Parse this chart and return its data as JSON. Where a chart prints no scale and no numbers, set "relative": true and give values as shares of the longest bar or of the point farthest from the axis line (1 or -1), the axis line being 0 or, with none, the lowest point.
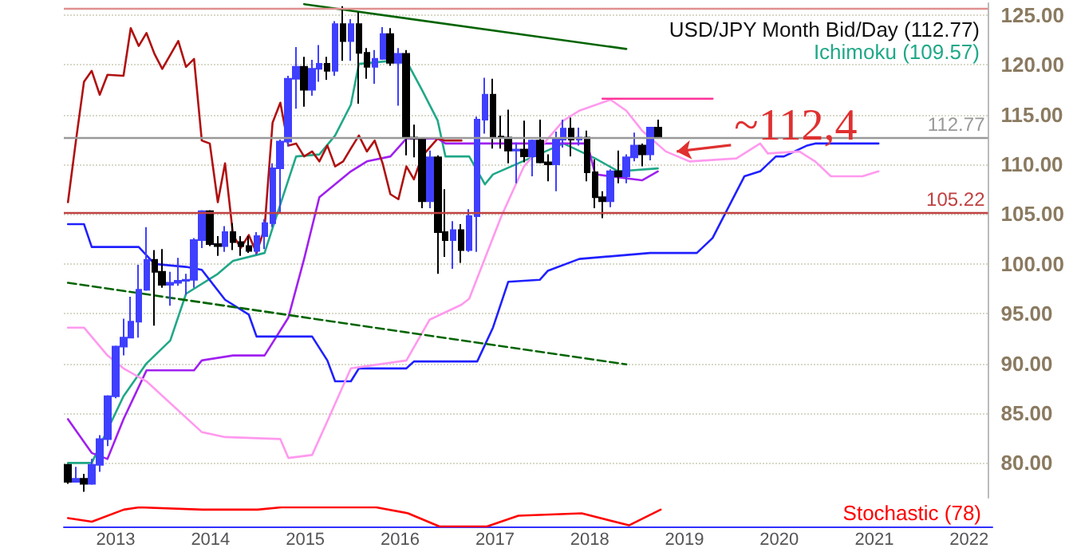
{
  "chart_data": [
    {
      "type": "candlestick",
      "xlim": [
        "2012-06-15",
        "2022-04"
      ],
      "ylim": [
        76.5,
        126.2
      ],
      "tick_labels": "y",
      "grid": "y",
      "legend": "top right",
      "marker": "none",
      "yticks": [
        {
          "value": 80,
          "label": "80.00"
        },
        {
          "value": 85,
          "label": "85.00"
        },
        {
          "value": 90,
          "label": "90.00"
        },
        {
          "value": 95,
          "label": "95.00"
        },
        {
          "value": 100,
          "label": "100.00"
        },
        {
          "value": 105,
          "label": "105.00"
        },
        {
          "value": 110,
          "label": "110.00"
        },
        {
          "value": 115,
          "label": "115.00"
        },
        {
          "value": 120,
          "label": "120.00"
        },
        {
          "value": 125,
          "label": "125.00"
        }
      ],
      "ref_lines": [
        {
          "axis": "y",
          "value": 125.6,
          "color": "#e09090"
        },
        {
          "axis": "y",
          "value": 112.77,
          "label": "112.77",
          "color": "#999999"
        },
        {
          "axis": "y",
          "value": 105.22,
          "label": "105.22",
          "color": "#c04040"
        }
      ],
      "annotations": [
        {
          "text": "~112,4",
          "x": "2018-12",
          "y": 111.3
        }
      ],
      "series": [
        {
          "type": "candlestick",
          "name": "USD/JPY Month Bid/Day (112.77)",
          "x": [
            "2012-07",
            "2012-08",
            "2012-09",
            "2012-10",
            "2012-11",
            "2012-12",
            "2013-01",
            "2013-02",
            "2013-03",
            "2013-04",
            "2013-05",
            "2013-06",
            "2013-07",
            "2013-08",
            "2013-09",
            "2013-10",
            "2013-11",
            "2013-12",
            "2014-01",
            "2014-02",
            "2014-03",
            "2014-04",
            "2014-05",
            "2014-06",
            "2014-07",
            "2014-08",
            "2014-09",
            "2014-10",
            "2014-11",
            "2014-12",
            "2015-01",
            "2015-02",
            "2015-03",
            "2015-04",
            "2015-05",
            "2015-06",
            "2015-07",
            "2015-08",
            "2015-09",
            "2015-10",
            "2015-11",
            "2015-12",
            "2016-01",
            "2016-02",
            "2016-03",
            "2016-04",
            "2016-05",
            "2016-06",
            "2016-07",
            "2016-08",
            "2016-09",
            "2016-10",
            "2016-11",
            "2016-12",
            "2017-01",
            "2017-02",
            "2017-03",
            "2017-04",
            "2017-05",
            "2017-06",
            "2017-07",
            "2017-08",
            "2017-09",
            "2017-10",
            "2017-11",
            "2017-12",
            "2018-01",
            "2018-02",
            "2018-03",
            "2018-04",
            "2018-05",
            "2018-06",
            "2018-07",
            "2018-08",
            "2018-09",
            "2018-10"
          ],
          "ohlc": [
            [
              79.8,
              79.9,
              77.9,
              78.1
            ],
            [
              78.1,
              79.6,
              78.1,
              78.4
            ],
            [
              78.4,
              78.9,
              77.1,
              77.9
            ],
            [
              77.9,
              80.4,
              77.8,
              79.8
            ],
            [
              79.8,
              82.8,
              79.1,
              82.4
            ],
            [
              82.4,
              86.8,
              81.7,
              86.7
            ],
            [
              86.7,
              91.8,
              86.5,
              91.7
            ],
            [
              91.7,
              94.5,
              90.8,
              92.6
            ],
            [
              92.6,
              96.7,
              92.6,
              94.2
            ],
            [
              94.2,
              99.9,
              92.6,
              97.4
            ],
            [
              97.4,
              103.7,
              97.3,
              100.4
            ],
            [
              100.4,
              101.4,
              93.8,
              99.2
            ],
            [
              99.2,
              101.5,
              97.6,
              97.9
            ],
            [
              97.9,
              99.2,
              95.8,
              98.1
            ],
            [
              98.1,
              100.6,
              97.8,
              98.3
            ],
            [
              98.3,
              99.0,
              96.9,
              98.4
            ],
            [
              98.4,
              102.6,
              97.6,
              102.4
            ],
            [
              102.4,
              105.4,
              101.6,
              105.3
            ],
            [
              105.3,
              105.4,
              101.8,
              102.0
            ],
            [
              102.0,
              102.8,
              100.8,
              101.8
            ],
            [
              101.8,
              103.8,
              101.2,
              103.2
            ],
            [
              103.2,
              104.1,
              101.4,
              102.2
            ],
            [
              102.2,
              102.8,
              100.8,
              101.8
            ],
            [
              101.8,
              102.8,
              101.1,
              101.3
            ],
            [
              101.3,
              103.2,
              100.9,
              102.8
            ],
            [
              102.8,
              104.5,
              101.5,
              104.1
            ],
            [
              104.1,
              110.1,
              103.7,
              109.6
            ],
            [
              109.6,
              112.5,
              105.2,
              112.3
            ],
            [
              112.3,
              118.9,
              111.8,
              118.6
            ],
            [
              118.6,
              121.8,
              115.6,
              119.8
            ],
            [
              119.8,
              120.8,
              115.8,
              117.5
            ],
            [
              117.5,
              120.5,
              116.9,
              119.6
            ],
            [
              119.6,
              122.0,
              118.3,
              120.1
            ],
            [
              120.1,
              120.8,
              118.5,
              119.4
            ],
            [
              119.4,
              124.4,
              118.9,
              124.1
            ],
            [
              124.1,
              125.9,
              120.4,
              122.4
            ],
            [
              122.4,
              124.6,
              120.4,
              124.1
            ],
            [
              124.1,
              125.3,
              116.1,
              121.2
            ],
            [
              121.2,
              121.7,
              118.6,
              119.8
            ],
            [
              119.8,
              121.5,
              118.1,
              120.6
            ],
            [
              120.6,
              123.8,
              120.5,
              123.1
            ],
            [
              123.1,
              123.7,
              119.9,
              120.2
            ],
            [
              120.2,
              121.7,
              115.9,
              121.1
            ],
            [
              121.1,
              121.5,
              110.9,
              112.7
            ],
            [
              112.7,
              114.0,
              110.7,
              112.6
            ],
            [
              112.6,
              112.6,
              105.6,
              106.3
            ],
            [
              106.3,
              111.4,
              105.6,
              110.7
            ],
            [
              110.7,
              110.9,
              99.0,
              103.2
            ],
            [
              103.2,
              107.5,
              100.7,
              102.4
            ],
            [
              102.4,
              104.3,
              99.5,
              103.4
            ],
            [
              103.4,
              104.0,
              100.1,
              101.4
            ],
            [
              101.4,
              105.5,
              101.2,
              104.8
            ],
            [
              104.8,
              114.8,
              101.2,
              114.5
            ],
            [
              114.5,
              118.7,
              113.1,
              117.0
            ],
            [
              117.0,
              118.6,
              111.6,
              112.8
            ],
            [
              112.8,
              114.9,
              111.6,
              112.7
            ],
            [
              112.7,
              115.5,
              110.1,
              111.4
            ],
            [
              111.4,
              112.2,
              108.1,
              111.5
            ],
            [
              111.5,
              114.4,
              110.2,
              110.8
            ],
            [
              110.8,
              112.5,
              108.8,
              112.4
            ],
            [
              112.4,
              114.5,
              110.1,
              110.2
            ],
            [
              110.2,
              111.0,
              108.3,
              110.0
            ],
            [
              110.0,
              113.3,
              107.3,
              112.5
            ],
            [
              112.5,
              114.5,
              111.7,
              113.6
            ],
            [
              113.6,
              114.7,
              110.8,
              112.5
            ],
            [
              112.5,
              113.7,
              111.9,
              112.7
            ],
            [
              112.7,
              113.4,
              108.3,
              109.2
            ],
            [
              109.2,
              110.5,
              105.6,
              106.7
            ],
            [
              106.7,
              107.3,
              104.6,
              106.3
            ],
            [
              106.3,
              109.5,
              105.7,
              109.3
            ],
            [
              109.3,
              111.4,
              108.1,
              108.8
            ],
            [
              108.8,
              111.0,
              108.1,
              110.7
            ],
            [
              110.7,
              113.2,
              110.3,
              111.9
            ],
            [
              111.9,
              112.1,
              109.8,
              111.0
            ],
            [
              111.0,
              113.7,
              110.4,
              113.7
            ],
            [
              113.7,
              114.5,
              112.6,
              112.8
            ]
          ],
          "colors": [
            "#000000",
            "#3f3fff",
            "#000000",
            "#3f3fff",
            "#3f3fff",
            "#3f3fff",
            "#3f3fff",
            "#3f3fff",
            "#3f3fff",
            "#3f3fff",
            "#3f3fff",
            "#000000",
            "#000000",
            "#3f3fff",
            "#3f3fff",
            "#3f3fff",
            "#3f3fff",
            "#3f3fff",
            "#000000",
            "#000000",
            "#3f3fff",
            "#000000",
            "#000000",
            "#000000",
            "#3f3fff",
            "#3f3fff",
            "#3f3fff",
            "#3f3fff",
            "#3f3fff",
            "#3f3fff",
            "#000000",
            "#3f3fff",
            "#3f3fff",
            "#000000",
            "#3f3fff",
            "#000000",
            "#3f3fff",
            "#000000",
            "#000000",
            "#3f3fff",
            "#3f3fff",
            "#000000",
            "#3f3fff",
            "#000000",
            "#000000",
            "#000000",
            "#3f3fff",
            "#000000",
            "#000000",
            "#3f3fff",
            "#000000",
            "#3f3fff",
            "#3f3fff",
            "#3f3fff",
            "#000000",
            "#000000",
            "#000000",
            "#3f3fff",
            "#000000",
            "#3f3fff",
            "#000000",
            "#000000",
            "#3f3fff",
            "#3f3fff",
            "#000000",
            "#3f3fff",
            "#000000",
            "#000000",
            "#000000",
            "#3f3fff",
            "#000000",
            "#3f3fff",
            "#3f3fff",
            "#000000",
            "#3f3fff",
            "#000000"
          ]
        },
        {
          "type": "line",
          "name": "Ichimoku (109.57)",
          "color": "#20a888",
          "x": [
            "2012-07",
            "2012-10",
            "2013-02",
            "2013-05",
            "2013-08",
            "2013-10",
            "2014-02",
            "2014-04",
            "2014-08",
            "2014-09",
            "2014-12",
            "2015-03",
            "2015-05",
            "2015-07",
            "2015-08",
            "2015-12",
            "2016-02",
            "2016-04",
            "2016-06",
            "2016-07",
            "2016-10",
            "2016-12",
            "2017-01",
            "2017-10",
            "2018-02",
            "2018-05",
            "2018-10"
          ],
          "values": [
            80.0,
            80.0,
            86.7,
            90.0,
            92.3,
            97.0,
            99.0,
            100.3,
            101.1,
            103.6,
            110.8,
            111.0,
            112.9,
            116.0,
            120.1,
            120.4,
            120.4,
            117.5,
            114.4,
            110.8,
            110.8,
            108.0,
            109.0,
            112.1,
            110.6,
            109.3,
            109.6
          ]
        },
        {
          "type": "line",
          "color": "#a020f0",
          "x": [
            "2012-07",
            "2012-10",
            "2012-12",
            "2013-02",
            "2013-05",
            "2013-11",
            "2013-12",
            "2014-04",
            "2014-08",
            "2014-11",
            "2015-01",
            "2015-03",
            "2015-07",
            "2015-09",
            "2015-12",
            "2016-02",
            "2016-06",
            "2016-07",
            "2018-01",
            "2018-02",
            "2018-08",
            "2018-10"
          ],
          "values": [
            84.4,
            81.0,
            80.4,
            84.4,
            89.3,
            89.3,
            90.3,
            90.8,
            90.8,
            94.6,
            100.5,
            106.7,
            109.3,
            110.3,
            110.8,
            112.6,
            112.6,
            112.1,
            112.1,
            109.0,
            108.4,
            109.3
          ]
        },
        {
          "type": "line",
          "color": "#b01010",
          "x": [
            "2012-07",
            "2012-08",
            "2012-09",
            "2012-10",
            "2012-11",
            "2012-12",
            "2013-02",
            "2013-03",
            "2013-04",
            "2013-05",
            "2013-06",
            "2013-07",
            "2013-09",
            "2013-10",
            "2013-11",
            "2013-12",
            "2014-01",
            "2014-02",
            "2014-03",
            "2014-04",
            "2014-05",
            "2014-06",
            "2014-07",
            "2014-08",
            "2014-09",
            "2014-10",
            "2014-11",
            "2014-12",
            "2015-01",
            "2015-02",
            "2015-03",
            "2015-04",
            "2015-05",
            "2015-06",
            "2015-07",
            "2015-08",
            "2015-09",
            "2015-10",
            "2015-11",
            "2015-12",
            "2016-01",
            "2016-02",
            "2016-03",
            "2016-04",
            "2016-06",
            "2016-07",
            "2016-09"
          ],
          "values": [
            106.2,
            112.4,
            118.3,
            119.4,
            117.0,
            119.0,
            118.9,
            123.7,
            121.9,
            123.2,
            121.1,
            119.6,
            122.4,
            119.8,
            120.6,
            112.4,
            112.1,
            106.2,
            110.1,
            102.9,
            101.6,
            102.9,
            101.1,
            103.6,
            114.2,
            116.2,
            111.9,
            112.1,
            110.8,
            111.3,
            110.3,
            111.9,
            109.8,
            110.3,
            111.6,
            112.9,
            111.3,
            112.4,
            110.1,
            107.0,
            106.5,
            109.8,
            108.5,
            110.8,
            112.6,
            112.4,
            112.4
          ]
        },
        {
          "type": "line",
          "color": "#2020ff",
          "x": [
            "2012-07",
            "2012-09",
            "2012-10",
            "2013-04",
            "2013-06",
            "2013-10",
            "2013-12",
            "2014-03",
            "2014-06",
            "2014-07",
            "2015-02",
            "2015-04",
            "2015-05",
            "2015-07",
            "2015-08",
            "2016-02",
            "2016-03",
            "2016-11",
            "2017-01",
            "2017-03",
            "2017-07",
            "2017-08",
            "2017-12",
            "2018-09",
            "2019-03",
            "2019-05",
            "2019-09",
            "2019-11",
            "2020-01",
            "2020-02",
            "2020-05",
            "2020-06",
            "2021-02"
          ],
          "values": [
            104.0,
            104.0,
            101.7,
            101.7,
            100.0,
            99.7,
            99.4,
            96.4,
            94.9,
            92.7,
            92.7,
            90.3,
            88.2,
            88.2,
            89.5,
            89.5,
            90.2,
            90.2,
            93.6,
            98.2,
            98.4,
            99.3,
            100.5,
            101.1,
            101.1,
            102.6,
            108.8,
            109.3,
            110.8,
            110.8,
            111.9,
            112.1,
            112.1
          ]
        },
        {
          "type": "line",
          "color": "#ff99ee",
          "x": [
            "2012-07",
            "2012-09",
            "2012-12",
            "2013-02",
            "2013-05",
            "2013-12",
            "2014-03",
            "2014-10",
            "2014-11",
            "2015-02",
            "2015-04",
            "2015-07",
            "2016-02",
            "2016-05",
            "2016-09",
            "2016-10",
            "2017-02",
            "2017-05",
            "2017-10",
            "2017-12",
            "2018-04",
            "2018-06",
            "2018-08",
            "2018-11",
            "2019-02",
            "2019-08",
            "2019-11",
            "2019-12",
            "2020-04",
            "2020-06",
            "2020-08",
            "2020-12",
            "2021-02"
          ],
          "values": [
            93.6,
            93.6,
            90.8,
            89.5,
            88.2,
            83.1,
            82.6,
            82.4,
            80.5,
            80.8,
            84.2,
            89.5,
            90.3,
            94.4,
            95.9,
            96.5,
            104.7,
            109.8,
            114.4,
            115.4,
            116.5,
            115.4,
            113.4,
            111.3,
            110.3,
            110.6,
            112.1,
            111.1,
            111.3,
            110.3,
            108.8,
            108.8,
            109.3
          ]
        },
        {
          "type": "line",
          "color": "#006400",
          "x": [
            "2015-01",
            "2018-06"
          ],
          "values": [
            126.1,
            121.6
          ]
        },
        {
          "type": "line",
          "color": "#006400",
          "line_style": "dashed",
          "x": [
            "2012-07",
            "2018-06"
          ],
          "values": [
            98.1,
            89.9
          ]
        },
        {
          "type": "line",
          "color": "#ff3399",
          "x": [
            "2018-03",
            "2019-05"
          ],
          "values": [
            116.6,
            116.6
          ]
        }
      ]
    },
    {
      "type": "line",
      "relative": true,
      "xlim": [
        "2012-06-15",
        "2022-04"
      ],
      "tick_labels": "x",
      "legend": "top right",
      "marker": "none",
      "xticks": [
        "2013",
        "2014",
        "2015",
        "2016",
        "2017",
        "2018",
        "2019",
        "2020",
        "2021",
        "2022"
      ],
      "x": [
        "2012-07",
        "2012-10",
        "2013-02",
        "2013-04",
        "2013-12",
        "2014-07",
        "2014-10",
        "2015-10",
        "2016-02",
        "2016-06",
        "2016-12",
        "2017-04",
        "2017-12",
        "2018-06",
        "2018-10"
      ],
      "series": [
        {
          "name": "Stochastic (78)",
          "color": "#ff0000",
          "values": [
            0.44,
            0.25,
            0.88,
            1.0,
            0.88,
            0.88,
            1.0,
            1.0,
            0.69,
            0,
            0,
            0.56,
            0.69,
            0.06,
            0.88
          ]
        }
      ]
    }
  ]
}
